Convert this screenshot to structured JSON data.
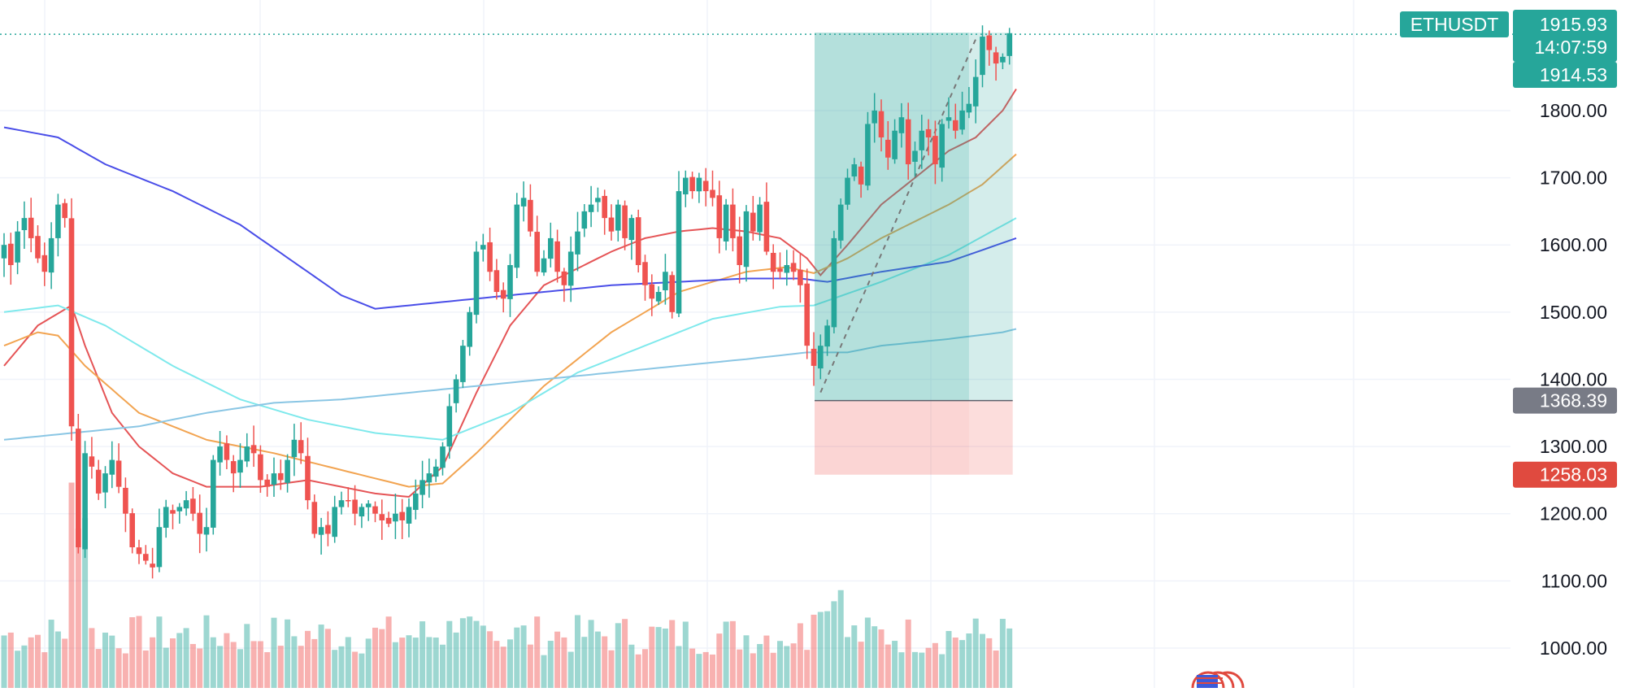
{
  "chart_data": {
    "type": "candlestick",
    "symbol": "ETHUSDT",
    "y_axis": {
      "ylim": [
        960,
        1950
      ],
      "ticks": [
        1000,
        1100,
        1200,
        1300,
        1400,
        1500,
        1600,
        1700,
        1800
      ],
      "tick_labels": [
        "1000.00",
        "1100.00",
        "1200.00",
        "1300.00",
        "1400.00",
        "1500.00",
        "1600.00",
        "1700.00",
        "1800.00"
      ],
      "gridlines": true
    },
    "x_axis": {
      "bars": 200,
      "visible_range": [
        0,
        199
      ]
    },
    "price_tags": {
      "symbol_label": "ETHUSDT",
      "last_price": "1915.93",
      "countdown": "14:07:59",
      "pre_price": "1914.53",
      "entry_price": "1368.39",
      "stop_price": "1258.03"
    },
    "tag_values": {
      "last": 1915.93,
      "entry": 1368.39,
      "stop": 1258.03
    },
    "colors": {
      "up": "#26a69a",
      "down": "#ef5350",
      "ma_red": "#e55456",
      "ma_orange": "#f2a451",
      "ma_cyan": "#7fe9ec",
      "ma_blue": "#4a4ee8",
      "ma_lightblue": "#8ac6e4",
      "profit_zone": "#26a69a",
      "loss_zone": "#ef5350",
      "grey_tag": "#787b86"
    },
    "position_tool": {
      "side": "long",
      "entry": 1368.39,
      "target": 1915.93,
      "stop": 1258.03,
      "start_bar": 120,
      "end_bar": 149
    },
    "price_path": [
      [
        0,
        1600
      ],
      [
        1,
        1570
      ],
      [
        2,
        1620
      ],
      [
        3,
        1640
      ],
      [
        4,
        1610
      ],
      [
        5,
        1580
      ],
      [
        6,
        1560
      ],
      [
        7,
        1610
      ],
      [
        8,
        1660
      ],
      [
        9,
        1640
      ],
      [
        10,
        1330
      ],
      [
        11,
        1150
      ],
      [
        12,
        1290
      ],
      [
        13,
        1270
      ],
      [
        14,
        1230
      ],
      [
        15,
        1260
      ],
      [
        16,
        1280
      ],
      [
        17,
        1240
      ],
      [
        18,
        1200
      ],
      [
        19,
        1150
      ],
      [
        20,
        1140
      ],
      [
        21,
        1130
      ],
      [
        22,
        1120
      ],
      [
        23,
        1180
      ],
      [
        24,
        1210
      ],
      [
        25,
        1200
      ],
      [
        26,
        1210
      ],
      [
        27,
        1220
      ],
      [
        28,
        1200
      ],
      [
        29,
        1170
      ],
      [
        30,
        1180
      ],
      [
        31,
        1280
      ],
      [
        32,
        1300
      ],
      [
        33,
        1280
      ],
      [
        34,
        1260
      ],
      [
        35,
        1280
      ],
      [
        36,
        1300
      ],
      [
        37,
        1290
      ],
      [
        38,
        1250
      ],
      [
        39,
        1240
      ],
      [
        40,
        1260
      ],
      [
        41,
        1250
      ],
      [
        42,
        1280
      ],
      [
        43,
        1310
      ],
      [
        44,
        1290
      ],
      [
        45,
        1220
      ],
      [
        46,
        1170
      ],
      [
        47,
        1180
      ],
      [
        48,
        1170
      ],
      [
        49,
        1210
      ],
      [
        50,
        1220
      ],
      [
        51,
        1220
      ],
      [
        52,
        1200
      ],
      [
        53,
        1210
      ],
      [
        54,
        1215
      ],
      [
        55,
        1200
      ],
      [
        56,
        1190
      ],
      [
        57,
        1185
      ],
      [
        58,
        1200
      ],
      [
        59,
        1190
      ],
      [
        60,
        1210
      ],
      [
        61,
        1230
      ],
      [
        62,
        1250
      ],
      [
        63,
        1260
      ],
      [
        64,
        1270
      ],
      [
        65,
        1300
      ],
      [
        66,
        1360
      ],
      [
        67,
        1400
      ],
      [
        68,
        1450
      ],
      [
        69,
        1500
      ],
      [
        70,
        1590
      ],
      [
        71,
        1600
      ],
      [
        72,
        1560
      ],
      [
        73,
        1530
      ],
      [
        74,
        1520
      ],
      [
        75,
        1570
      ],
      [
        76,
        1660
      ],
      [
        77,
        1670
      ],
      [
        78,
        1620
      ],
      [
        79,
        1560
      ],
      [
        80,
        1580
      ],
      [
        81,
        1610
      ],
      [
        82,
        1560
      ],
      [
        83,
        1540
      ],
      [
        84,
        1590
      ],
      [
        85,
        1620
      ],
      [
        86,
        1650
      ],
      [
        87,
        1660
      ],
      [
        88,
        1670
      ],
      [
        89,
        1640
      ],
      [
        90,
        1620
      ],
      [
        91,
        1660
      ],
      [
        92,
        1610
      ],
      [
        93,
        1640
      ],
      [
        94,
        1570
      ],
      [
        95,
        1540
      ],
      [
        96,
        1520
      ],
      [
        97,
        1530
      ],
      [
        98,
        1560
      ],
      [
        99,
        1500
      ],
      [
        100,
        1680
      ],
      [
        101,
        1700
      ],
      [
        102,
        1680
      ],
      [
        103,
        1700
      ],
      [
        104,
        1680
      ],
      [
        105,
        1670
      ],
      [
        106,
        1610
      ],
      [
        107,
        1660
      ],
      [
        108,
        1610
      ],
      [
        109,
        1570
      ],
      [
        110,
        1650
      ],
      [
        111,
        1620
      ],
      [
        112,
        1660
      ],
      [
        113,
        1590
      ],
      [
        114,
        1560
      ],
      [
        115,
        1560
      ],
      [
        116,
        1570
      ],
      [
        117,
        1560
      ],
      [
        118,
        1540
      ],
      [
        119,
        1450
      ],
      [
        120,
        1420
      ],
      [
        121,
        1450
      ],
      [
        122,
        1480
      ],
      [
        123,
        1610
      ],
      [
        124,
        1660
      ],
      [
        125,
        1700
      ],
      [
        126,
        1720
      ],
      [
        127,
        1690
      ],
      [
        128,
        1780
      ],
      [
        129,
        1800
      ],
      [
        130,
        1760
      ],
      [
        131,
        1730
      ],
      [
        132,
        1770
      ],
      [
        133,
        1790
      ],
      [
        134,
        1720
      ],
      [
        135,
        1740
      ],
      [
        136,
        1770
      ],
      [
        137,
        1760
      ],
      [
        138,
        1720
      ],
      [
        139,
        1780
      ],
      [
        140,
        1790
      ],
      [
        141,
        1770
      ],
      [
        142,
        1800
      ],
      [
        143,
        1810
      ],
      [
        144,
        1850
      ],
      [
        145,
        1910
      ],
      [
        146,
        1890
      ],
      [
        147,
        1870
      ],
      [
        148,
        1880
      ],
      [
        149,
        1915
      ]
    ],
    "moving_averages": [
      {
        "name": "MA red",
        "color": "#e55456",
        "points": [
          [
            0,
            1420
          ],
          [
            5,
            1480
          ],
          [
            10,
            1510
          ],
          [
            12,
            1450
          ],
          [
            16,
            1350
          ],
          [
            20,
            1300
          ],
          [
            25,
            1260
          ],
          [
            30,
            1240
          ],
          [
            38,
            1240
          ],
          [
            45,
            1250
          ],
          [
            55,
            1230
          ],
          [
            60,
            1225
          ],
          [
            65,
            1270
          ],
          [
            70,
            1380
          ],
          [
            75,
            1480
          ],
          [
            80,
            1540
          ],
          [
            90,
            1590
          ],
          [
            95,
            1610
          ],
          [
            100,
            1620
          ],
          [
            105,
            1625
          ],
          [
            110,
            1620
          ],
          [
            115,
            1610
          ],
          [
            119,
            1580
          ],
          [
            121,
            1555
          ],
          [
            125,
            1600
          ],
          [
            130,
            1660
          ],
          [
            135,
            1700
          ],
          [
            140,
            1740
          ],
          [
            144,
            1760
          ],
          [
            148,
            1800
          ],
          [
            150,
            1832
          ]
        ]
      },
      {
        "name": "MA orange",
        "color": "#f2a451",
        "points": [
          [
            0,
            1450
          ],
          [
            5,
            1470
          ],
          [
            8,
            1465
          ],
          [
            12,
            1420
          ],
          [
            20,
            1350
          ],
          [
            30,
            1310
          ],
          [
            40,
            1290
          ],
          [
            50,
            1265
          ],
          [
            60,
            1240
          ],
          [
            65,
            1245
          ],
          [
            70,
            1290
          ],
          [
            80,
            1390
          ],
          [
            90,
            1470
          ],
          [
            100,
            1530
          ],
          [
            110,
            1560
          ],
          [
            116,
            1567
          ],
          [
            120,
            1558
          ],
          [
            125,
            1580
          ],
          [
            130,
            1610
          ],
          [
            140,
            1660
          ],
          [
            145,
            1690
          ],
          [
            150,
            1735
          ]
        ]
      },
      {
        "name": "MA cyan",
        "color": "#7fe9ec",
        "points": [
          [
            0,
            1500
          ],
          [
            8,
            1510
          ],
          [
            15,
            1480
          ],
          [
            25,
            1420
          ],
          [
            35,
            1370
          ],
          [
            45,
            1340
          ],
          [
            55,
            1320
          ],
          [
            65,
            1310
          ],
          [
            75,
            1350
          ],
          [
            85,
            1410
          ],
          [
            95,
            1450
          ],
          [
            105,
            1490
          ],
          [
            115,
            1508
          ],
          [
            120,
            1510
          ],
          [
            130,
            1545
          ],
          [
            140,
            1585
          ],
          [
            150,
            1640
          ]
        ]
      },
      {
        "name": "MA blue",
        "color": "#4a4ee8",
        "points": [
          [
            0,
            1775
          ],
          [
            8,
            1760
          ],
          [
            15,
            1720
          ],
          [
            25,
            1680
          ],
          [
            35,
            1630
          ],
          [
            45,
            1560
          ],
          [
            50,
            1525
          ],
          [
            55,
            1505
          ],
          [
            60,
            1510
          ],
          [
            70,
            1520
          ],
          [
            80,
            1530
          ],
          [
            90,
            1540
          ],
          [
            100,
            1545
          ],
          [
            110,
            1550
          ],
          [
            118,
            1550
          ],
          [
            122,
            1545
          ],
          [
            130,
            1560
          ],
          [
            140,
            1575
          ],
          [
            150,
            1610
          ]
        ]
      },
      {
        "name": "MA lightblue",
        "color": "#8ac6e4",
        "points": [
          [
            0,
            1310
          ],
          [
            10,
            1320
          ],
          [
            20,
            1330
          ],
          [
            30,
            1350
          ],
          [
            40,
            1365
          ],
          [
            50,
            1370
          ],
          [
            60,
            1380
          ],
          [
            70,
            1390
          ],
          [
            80,
            1400
          ],
          [
            90,
            1410
          ],
          [
            100,
            1420
          ],
          [
            110,
            1430
          ],
          [
            119,
            1440
          ],
          [
            125,
            1440
          ],
          [
            130,
            1450
          ],
          [
            140,
            1460
          ],
          [
            148,
            1470
          ],
          [
            150,
            1475
          ]
        ]
      }
    ]
  }
}
